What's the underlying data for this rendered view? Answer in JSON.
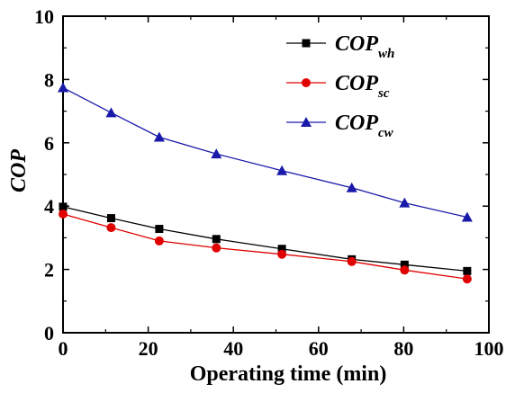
{
  "chart_data": {
    "type": "line",
    "xlabel": "Operating time (min)",
    "ylabel": "COP",
    "xlim": [
      0,
      100
    ],
    "ylim": [
      0,
      10
    ],
    "xticks": [
      "0",
      "20",
      "40",
      "60",
      "80",
      "100"
    ],
    "yticks": [
      "0",
      "2",
      "4",
      "6",
      "8",
      "10"
    ],
    "grid": false,
    "legend_position": "top-right",
    "x": [
      0,
      11.3,
      22.6,
      36,
      51.4,
      67.8,
      80.2,
      94.9
    ],
    "series": [
      {
        "name": "COP",
        "subscript": "wh",
        "color": "#000000",
        "marker": "square",
        "values": [
          3.98,
          3.62,
          3.28,
          2.96,
          2.65,
          2.32,
          2.15,
          1.95
        ]
      },
      {
        "name": "COP",
        "subscript": "sc",
        "color": "#e00000",
        "marker": "circle",
        "values": [
          3.75,
          3.32,
          2.9,
          2.68,
          2.48,
          2.25,
          1.98,
          1.7
        ]
      },
      {
        "name": "COP",
        "subscript": "cw",
        "color": "#1a1aaa",
        "marker": "triangle",
        "values": [
          7.74,
          6.95,
          6.18,
          5.65,
          5.12,
          4.58,
          4.1,
          3.65
        ]
      }
    ]
  }
}
